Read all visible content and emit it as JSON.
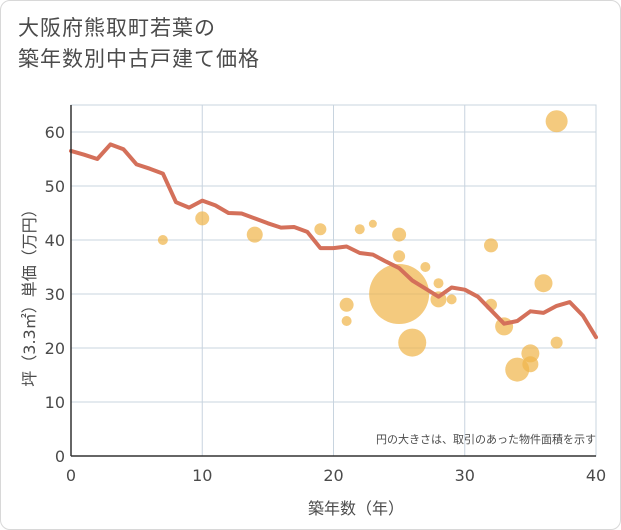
{
  "title": {
    "line1": "大阪府熊取町若葉の",
    "line2": "築年数別中古戸建て価格"
  },
  "chart_data": {
    "type": "scatter",
    "title": "大阪府熊取町若葉の築年数別中古戸建て価格",
    "xlabel": "築年数（年）",
    "ylabel": "坪（3.3㎡）単価（万円）",
    "xlim": [
      0,
      40
    ],
    "ylim": [
      0,
      65
    ],
    "xticks": [
      "0",
      "10",
      "20",
      "30",
      "40"
    ],
    "yticks": [
      "0",
      "10",
      "20",
      "30",
      "40",
      "50",
      "60"
    ],
    "grid": true,
    "note": "円の大きさは、取引のあった物件面積を示す",
    "colors": {
      "line": "#d4705a",
      "bubble": "#f0b54c",
      "grid": "#c8d4df"
    },
    "line_series": {
      "x": [
        0,
        1,
        2,
        3,
        4,
        5,
        6,
        7,
        8,
        9,
        10,
        11,
        12,
        13,
        14,
        15,
        16,
        17,
        18,
        19,
        20,
        21,
        22,
        23,
        24,
        25,
        26,
        27,
        28,
        29,
        30,
        31,
        32,
        33,
        34,
        35,
        36,
        37,
        38,
        39,
        40
      ],
      "y": [
        56.5,
        55.8,
        55.0,
        57.7,
        56.8,
        54.0,
        53.2,
        52.3,
        47.0,
        46.0,
        47.3,
        46.4,
        45.0,
        44.9,
        44.0,
        43.1,
        42.3,
        42.4,
        41.5,
        38.5,
        38.5,
        38.8,
        37.6,
        37.3,
        36.0,
        34.8,
        32.5,
        31.0,
        29.5,
        31.2,
        30.8,
        29.5,
        27.0,
        24.5,
        25.0,
        26.8,
        26.5,
        27.8,
        28.5,
        26.0,
        22.0
      ]
    },
    "bubbles": [
      {
        "x": 7,
        "y": 40,
        "size": 5
      },
      {
        "x": 10,
        "y": 44,
        "size": 7
      },
      {
        "x": 14,
        "y": 41,
        "size": 8
      },
      {
        "x": 19,
        "y": 42,
        "size": 6
      },
      {
        "x": 21,
        "y": 28,
        "size": 7
      },
      {
        "x": 21,
        "y": 25,
        "size": 5
      },
      {
        "x": 22,
        "y": 42,
        "size": 5
      },
      {
        "x": 23,
        "y": 43,
        "size": 4
      },
      {
        "x": 25,
        "y": 41,
        "size": 7
      },
      {
        "x": 25,
        "y": 37,
        "size": 6
      },
      {
        "x": 25,
        "y": 30,
        "size": 30
      },
      {
        "x": 26,
        "y": 21,
        "size": 14
      },
      {
        "x": 27,
        "y": 35,
        "size": 5
      },
      {
        "x": 28,
        "y": 32,
        "size": 5
      },
      {
        "x": 28,
        "y": 29,
        "size": 8
      },
      {
        "x": 29,
        "y": 29,
        "size": 5
      },
      {
        "x": 32,
        "y": 39,
        "size": 7
      },
      {
        "x": 32,
        "y": 28,
        "size": 6
      },
      {
        "x": 33,
        "y": 24,
        "size": 9
      },
      {
        "x": 34,
        "y": 16,
        "size": 12
      },
      {
        "x": 35,
        "y": 19,
        "size": 9
      },
      {
        "x": 35,
        "y": 17,
        "size": 8
      },
      {
        "x": 36,
        "y": 32,
        "size": 9
      },
      {
        "x": 37,
        "y": 21,
        "size": 6
      },
      {
        "x": 37,
        "y": 62,
        "size": 11
      }
    ]
  }
}
